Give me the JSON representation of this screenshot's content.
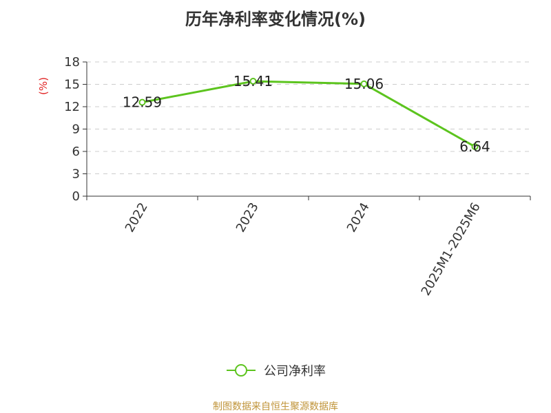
{
  "chart_data": {
    "type": "line",
    "title": "历年净利率变化情况(%)",
    "ylabel": "(%)",
    "xlabel": "",
    "categories": [
      "2022",
      "2023",
      "2024",
      "2025M1-2025M6"
    ],
    "series": [
      {
        "name": "公司净利率",
        "values": [
          12.59,
          15.41,
          15.06,
          6.64
        ],
        "color": "#5cc41e"
      }
    ],
    "data_labels": [
      "12.59",
      "15.41",
      "15.06",
      "6.64"
    ],
    "ylim": [
      0,
      18
    ],
    "yticks": [
      0,
      3,
      6,
      9,
      12,
      15,
      18
    ],
    "grid": true,
    "legend_position": "bottom"
  },
  "colors": {
    "axis": "#333333",
    "grid": "#cccccc",
    "ylabel": "#e02020",
    "source": "#c0943a"
  },
  "source_text": "制图数据来自恒生聚源数据库"
}
